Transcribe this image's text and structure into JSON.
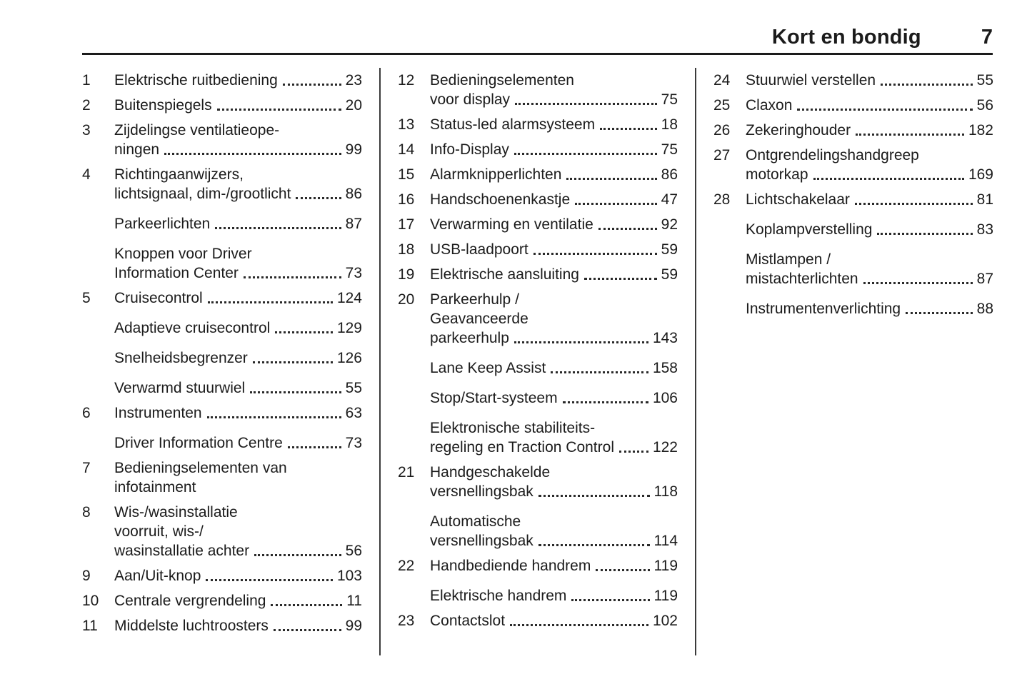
{
  "header": {
    "title": "Kort en bondig",
    "page_number": "7"
  },
  "colors": {
    "text": "#1b1b1b",
    "rule": "#1b1b1b",
    "background": "#ffffff"
  },
  "columns": [
    {
      "entries": [
        {
          "num": "1",
          "lines": [
            "Elektrische ruitbediening"
          ],
          "page": "23"
        },
        {
          "num": "2",
          "lines": [
            "Buitenspiegels"
          ],
          "page": "20"
        },
        {
          "num": "3",
          "lines": [
            "Zijdelingse ventilatieope-",
            "ningen"
          ],
          "page": "99"
        },
        {
          "num": "4",
          "lines": [
            "Richtingaanwijzers,",
            "lichtsignaal, dim-/grootlicht"
          ],
          "page": "86"
        },
        {
          "num": "",
          "lines": [
            "Parkeerlichten"
          ],
          "page": "87"
        },
        {
          "num": "",
          "lines": [
            "Knoppen voor Driver",
            "Information Center"
          ],
          "page": "73"
        },
        {
          "num": "5",
          "lines": [
            "Cruisecontrol"
          ],
          "page": "124"
        },
        {
          "num": "",
          "lines": [
            "Adaptieve cruisecontrol"
          ],
          "page": "129"
        },
        {
          "num": "",
          "lines": [
            "Snelheidsbegrenzer"
          ],
          "page": "126"
        },
        {
          "num": "",
          "lines": [
            "Verwarmd stuurwiel"
          ],
          "page": "55"
        },
        {
          "num": "6",
          "lines": [
            "Instrumenten"
          ],
          "page": "63"
        },
        {
          "num": "",
          "lines": [
            "Driver Information Centre"
          ],
          "page": "73"
        },
        {
          "num": "7",
          "lines": [
            "Bedieningselementen van",
            "infotainment"
          ],
          "page": ""
        },
        {
          "num": "8",
          "lines": [
            "Wis-/wasinstallatie",
            "voorruit, wis-/",
            "wasinstallatie achter"
          ],
          "page": "56"
        },
        {
          "num": "9",
          "lines": [
            "Aan/Uit-knop"
          ],
          "page": "103"
        },
        {
          "num": "10",
          "lines": [
            "Centrale vergrendeling"
          ],
          "page": "11"
        },
        {
          "num": "11",
          "lines": [
            "Middelste luchtroosters"
          ],
          "page": "99"
        }
      ]
    },
    {
      "entries": [
        {
          "num": "12",
          "lines": [
            "Bedieningselementen",
            "voor display"
          ],
          "page": "75"
        },
        {
          "num": "13",
          "lines": [
            "Status-led alarmsysteem"
          ],
          "page": "18"
        },
        {
          "num": "14",
          "lines": [
            "Info-Display"
          ],
          "page": "75"
        },
        {
          "num": "15",
          "lines": [
            "Alarmknipperlichten"
          ],
          "page": "86"
        },
        {
          "num": "16",
          "lines": [
            "Handschoenenkastje"
          ],
          "page": "47"
        },
        {
          "num": "17",
          "lines": [
            "Verwarming en ventilatie"
          ],
          "page": "92"
        },
        {
          "num": "18",
          "lines": [
            "USB-laadpoort"
          ],
          "page": "59"
        },
        {
          "num": "19",
          "lines": [
            "Elektrische aansluiting"
          ],
          "page": "59"
        },
        {
          "num": "20",
          "lines": [
            "Parkeerhulp /",
            "Geavanceerde",
            "parkeerhulp"
          ],
          "page": "143"
        },
        {
          "num": "",
          "lines": [
            "Lane Keep Assist"
          ],
          "page": "158"
        },
        {
          "num": "",
          "lines": [
            "Stop/Start-systeem"
          ],
          "page": "106"
        },
        {
          "num": "",
          "lines": [
            "Elektronische stabiliteits-",
            "regeling en Traction Control"
          ],
          "page": "122"
        },
        {
          "num": "21",
          "lines": [
            "Handgeschakelde",
            "versnellingsbak"
          ],
          "page": "118"
        },
        {
          "num": "",
          "lines": [
            "Automatische",
            "versnellingsbak"
          ],
          "page": "114"
        },
        {
          "num": "22",
          "lines": [
            "Handbediende handrem"
          ],
          "page": "119"
        },
        {
          "num": "",
          "lines": [
            "Elektrische handrem"
          ],
          "page": "119"
        },
        {
          "num": "23",
          "lines": [
            "Contactslot"
          ],
          "page": "102"
        }
      ]
    },
    {
      "entries": [
        {
          "num": "24",
          "lines": [
            "Stuurwiel verstellen"
          ],
          "page": "55"
        },
        {
          "num": "25",
          "lines": [
            "Claxon"
          ],
          "page": "56"
        },
        {
          "num": "26",
          "lines": [
            "Zekeringhouder"
          ],
          "page": "182"
        },
        {
          "num": "27",
          "lines": [
            "Ontgrendelingshandgreep",
            "motorkap"
          ],
          "page": "169"
        },
        {
          "num": "28",
          "lines": [
            "Lichtschakelaar"
          ],
          "page": "81"
        },
        {
          "num": "",
          "lines": [
            "Koplampverstelling"
          ],
          "page": "83"
        },
        {
          "num": "",
          "lines": [
            "Mistlampen /",
            "mistachterlichten"
          ],
          "page": "87"
        },
        {
          "num": "",
          "lines": [
            "Instrumentenverlichting"
          ],
          "page": "88"
        }
      ]
    }
  ]
}
